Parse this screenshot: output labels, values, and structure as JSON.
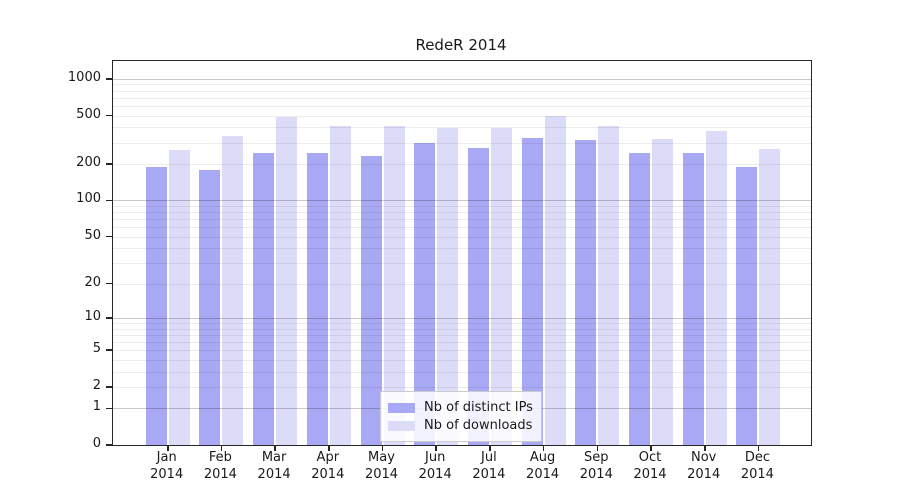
{
  "chart_data": {
    "type": "bar",
    "title": "RedeR 2014",
    "categories": [
      "Jan",
      "Feb",
      "Mar",
      "Apr",
      "May",
      "Jun",
      "Jul",
      "Aug",
      "Sep",
      "Oct",
      "Nov",
      "Dec"
    ],
    "category_year": "2014",
    "series": [
      {
        "name": "Nb of distinct IPs",
        "color": "#a8a8f4",
        "values": [
          190,
          178,
          245,
          245,
          233,
          295,
          272,
          324,
          315,
          245,
          244,
          190
        ]
      },
      {
        "name": "Nb of downloads",
        "color": "#dcdcf9",
        "values": [
          262,
          340,
          490,
          413,
          410,
          396,
          394,
          500,
          411,
          322,
          370,
          265
        ]
      }
    ],
    "yscale": "log1p",
    "yticks": [
      0,
      1,
      2,
      5,
      10,
      20,
      50,
      100,
      200,
      500,
      1000
    ],
    "major_gridlines": [
      1,
      10,
      100,
      1000
    ],
    "minor_gridlines": [
      2,
      3,
      4,
      5,
      6,
      7,
      8,
      9,
      20,
      30,
      40,
      50,
      60,
      70,
      80,
      90,
      200,
      300,
      400,
      500,
      600,
      700,
      800,
      900
    ],
    "ylim_top": 1400,
    "grid": true,
    "legend_position": "inside lower center",
    "colors": {
      "major_grid": "#c9c9c9",
      "minor_grid": "#ececec",
      "axis": "#262626",
      "background": "#ffffff"
    }
  }
}
